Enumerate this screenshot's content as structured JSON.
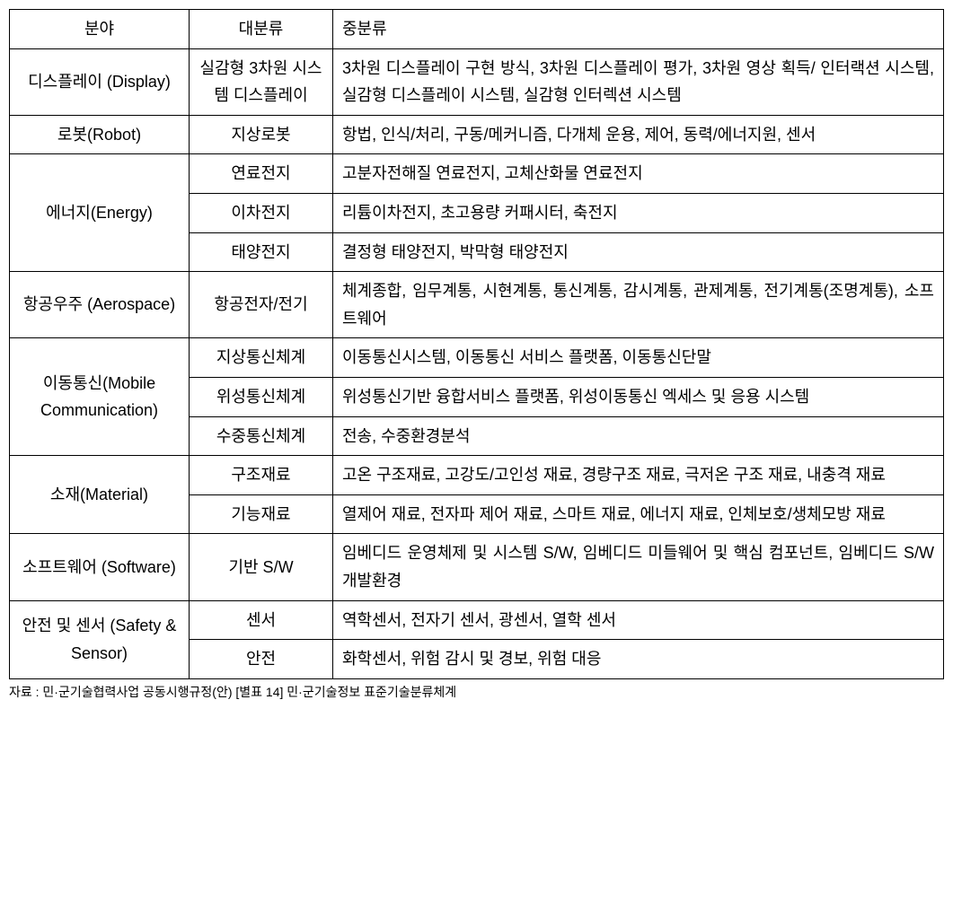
{
  "table": {
    "headers": {
      "field": "분야",
      "major": "대분류",
      "detail": "중분류"
    },
    "columns": {
      "field_width": 200,
      "major_width": 160
    },
    "rows": [
      {
        "field": "디스플레이 (Display)",
        "subrows": [
          {
            "major": "실감형 3차원 시스템 디스플레이",
            "detail": "3차원 디스플레이 구현 방식, 3차원 디스플레이 평가, 3차원 영상 획득/ 인터랙션 시스템, 실감형 디스플레이 시스템, 실감형 인터렉션 시스템"
          }
        ]
      },
      {
        "field": "로봇(Robot)",
        "subrows": [
          {
            "major": "지상로봇",
            "detail": "항법, 인식/처리, 구동/메커니즘, 다개체 운용, 제어, 동력/에너지원, 센서"
          }
        ]
      },
      {
        "field": "에너지(Energy)",
        "subrows": [
          {
            "major": "연료전지",
            "detail": "고분자전해질 연료전지, 고체산화물 연료전지"
          },
          {
            "major": "이차전지",
            "detail": "리튬이차전지, 초고용량 커패시터, 축전지"
          },
          {
            "major": "태양전지",
            "detail": "결정형 태양전지, 박막형 태양전지"
          }
        ]
      },
      {
        "field": "항공우주 (Aerospace)",
        "subrows": [
          {
            "major": "항공전자/전기",
            "detail": "체계종합, 임무계통, 시현계통, 통신계통, 감시계통, 관제계통, 전기계통(조명계통), 소프트웨어"
          }
        ]
      },
      {
        "field": "이동통신(Mobile Communication)",
        "subrows": [
          {
            "major": "지상통신체계",
            "detail": "이동통신시스템, 이동통신 서비스 플랫폼, 이동통신단말"
          },
          {
            "major": "위성통신체계",
            "detail": "위성통신기반 융합서비스 플랫폼, 위성이동통신 엑세스 및 응용 시스템"
          },
          {
            "major": "수중통신체계",
            "detail": "전송, 수중환경분석"
          }
        ]
      },
      {
        "field": "소재(Material)",
        "subrows": [
          {
            "major": "구조재료",
            "detail": "고온 구조재료, 고강도/고인성 재료, 경량구조 재료, 극저온 구조 재료, 내충격 재료"
          },
          {
            "major": "기능재료",
            "detail": "열제어 재료, 전자파 제어 재료, 스마트 재료, 에너지 재료, 인체보호/생체모방 재료"
          }
        ]
      },
      {
        "field": "소프트웨어 (Software)",
        "subrows": [
          {
            "major": "기반 S/W",
            "detail": "임베디드 운영체제 및 시스템 S/W, 임베디드 미들웨어 및 핵심 컴포넌트, 임베디드 S/W 개발환경"
          }
        ]
      },
      {
        "field": "안전 및 센서 (Safety & Sensor)",
        "subrows": [
          {
            "major": "센서",
            "detail": "역학센서, 전자기 센서, 광센서, 열학 센서"
          },
          {
            "major": "안전",
            "detail": "화학센서, 위험 감시 및 경보, 위험 대응"
          }
        ]
      }
    ]
  },
  "source": "자료 : 민·군기술협력사업 공동시행규정(안) [별표 14] 민·군기술정보 표준기술분류체계",
  "styling": {
    "font_family": "Malgun Gothic",
    "cell_fontsize": 18,
    "source_fontsize": 14,
    "border_color": "#000000",
    "text_color": "#000000",
    "background_color": "#ffffff",
    "line_height": 1.7
  }
}
